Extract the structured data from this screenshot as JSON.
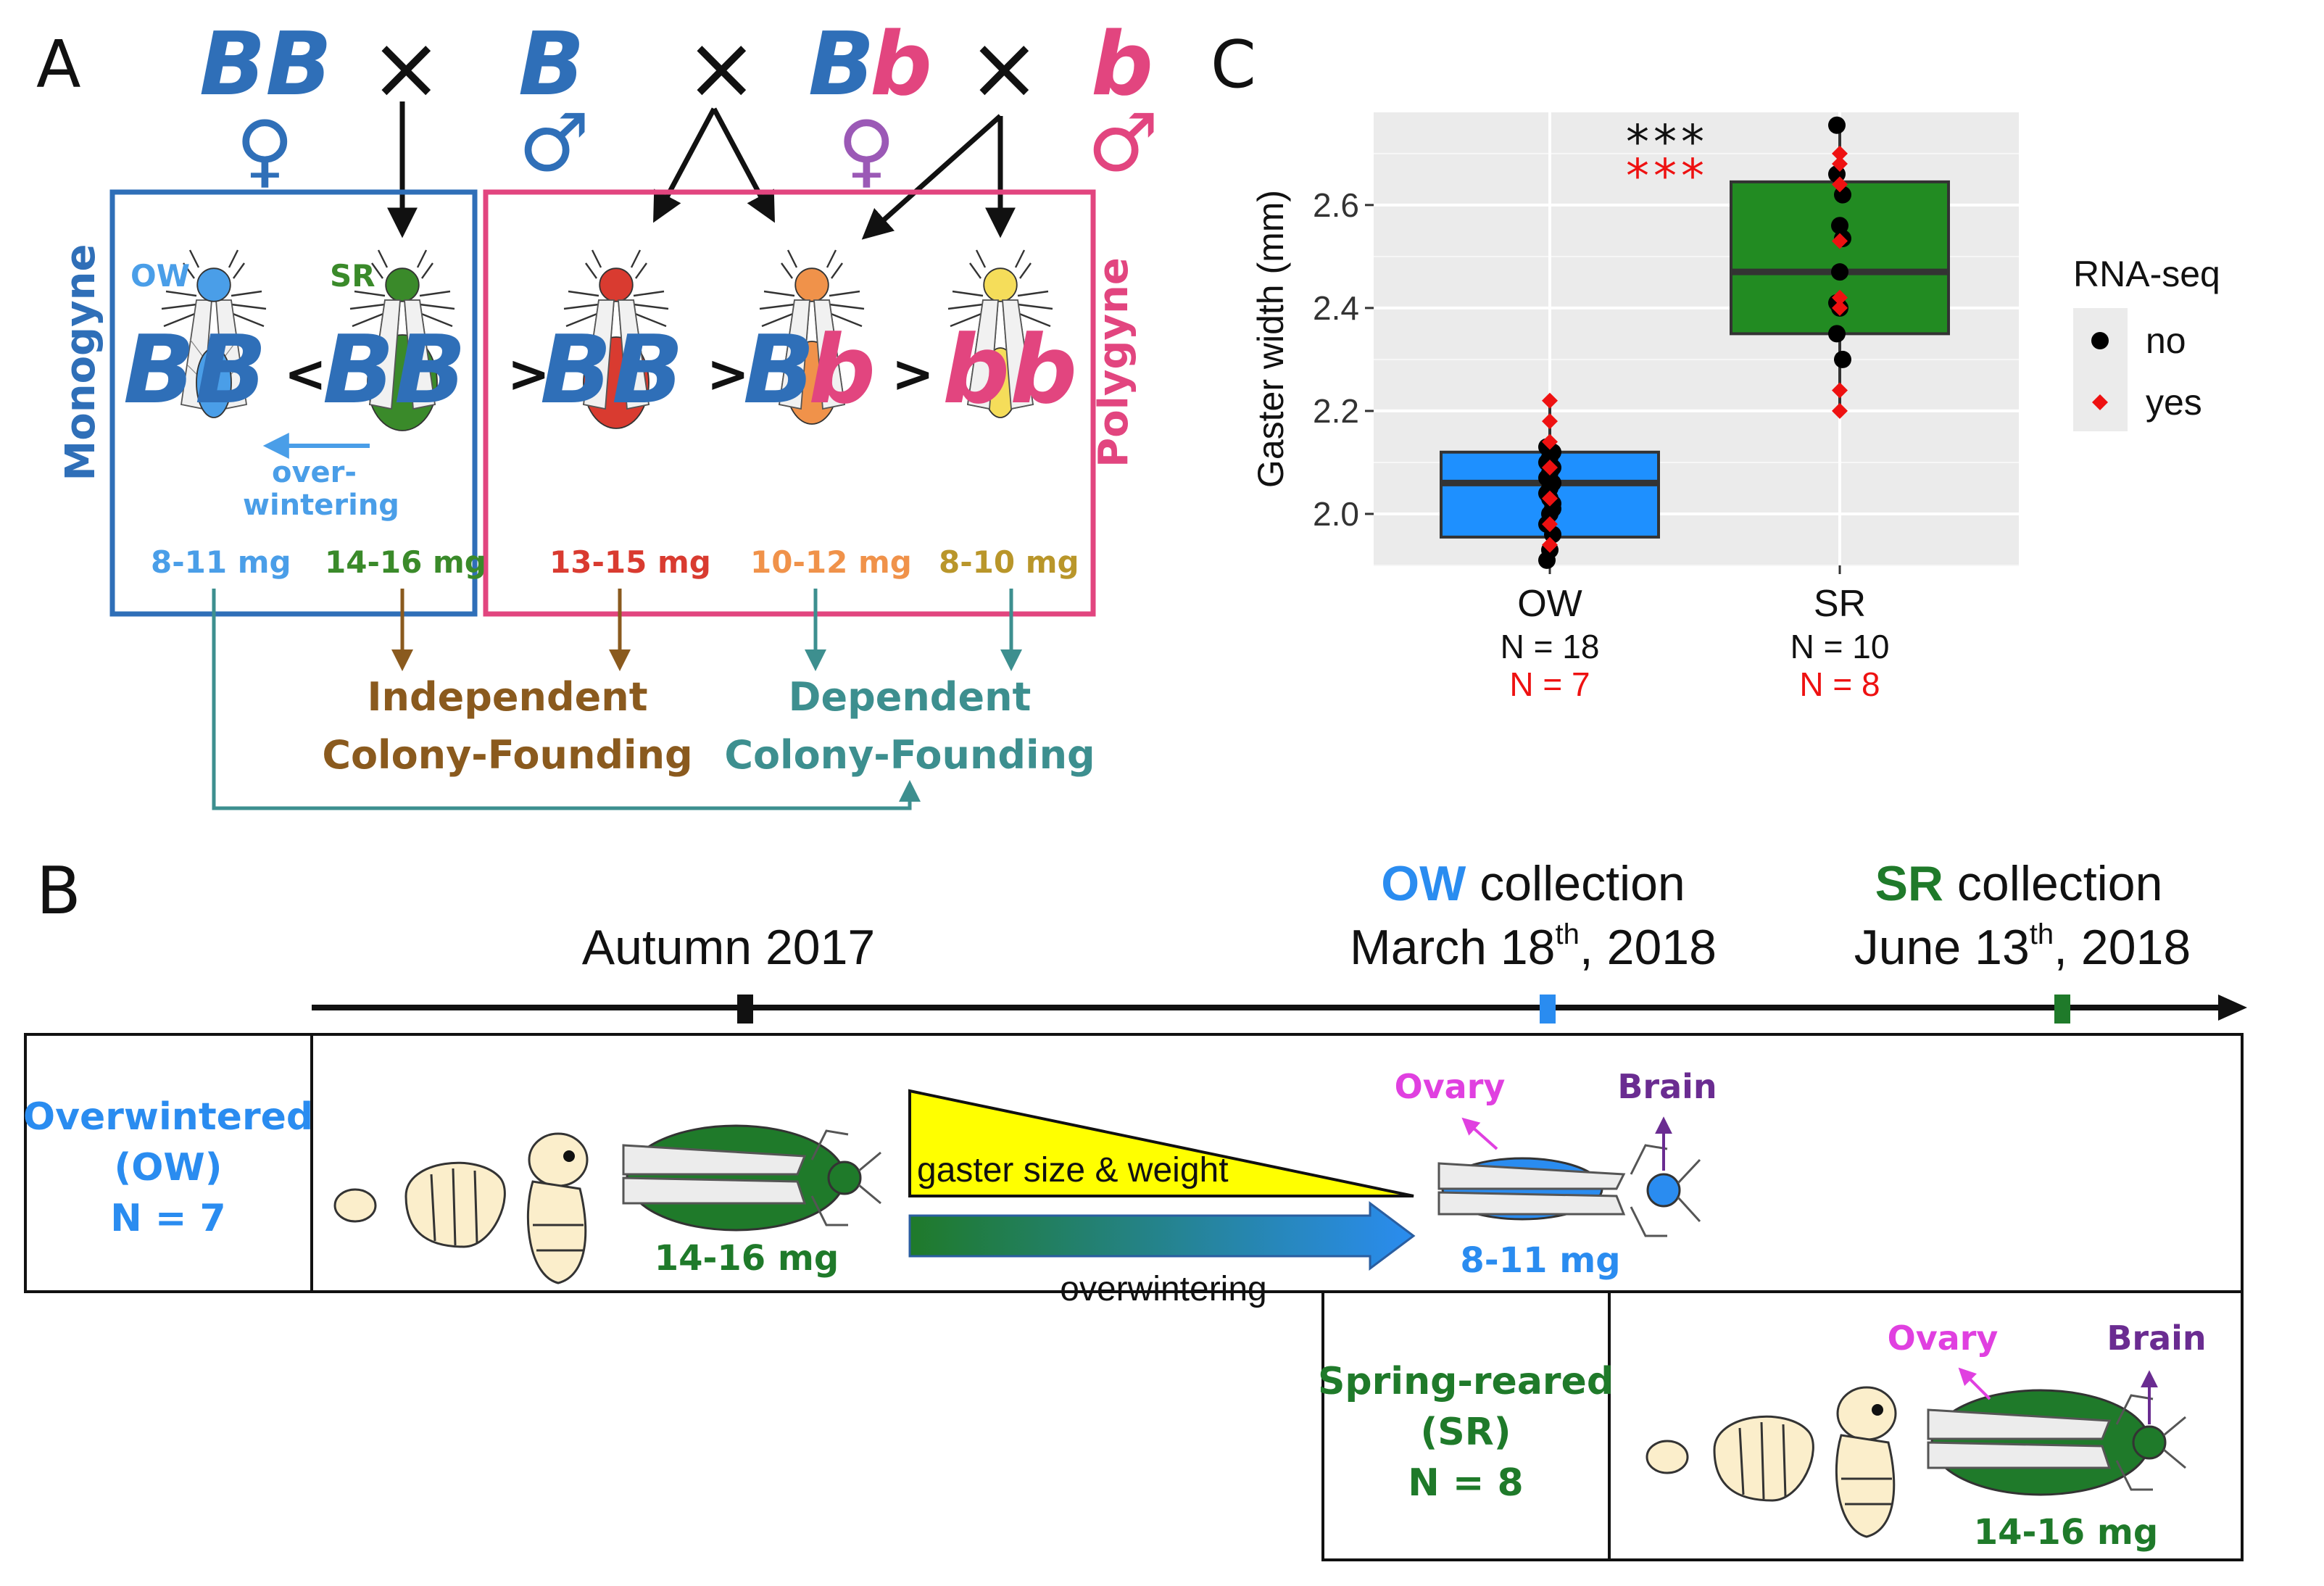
{
  "panel_a": {
    "label": "A",
    "cross": {
      "genotype_bb_female": "BB",
      "female_symbol": "♀",
      "cross_symbol": "×",
      "genotype_b_male": "B",
      "male_symbol": "♂",
      "genotype_bb_het_B": "B",
      "genotype_bb_het_b": "b",
      "hetero_female_symbol": "♀",
      "genotype_little_b_male": "b",
      "little_b_male_symbol": "♂"
    },
    "monogyne": {
      "label": "Monogyne",
      "ow_label": "OW",
      "sr_label": "SR",
      "ow_genotype": "BB",
      "sr_genotype": "BB",
      "less_than": "<",
      "overwintering_line1": "over-",
      "overwintering_line2": "wintering",
      "ow_weight": "8-11 mg",
      "sr_weight": "14-16 mg",
      "color": "#2f6fb8"
    },
    "polygyne": {
      "label": "Polygyne",
      "gt1": ">",
      "gt2": ">",
      "gt3": ">",
      "bb_genotype": "BB",
      "het_B": "B",
      "het_b": "b",
      "homo_b": "bb",
      "bb_weight": "13-15 mg",
      "het_weight": "10-12 mg",
      "homo_weight": "8-10 mg",
      "color": "#e2457f"
    },
    "founding": {
      "independent_line1": "Independent",
      "independent_line2": "Colony-Founding",
      "dependent_line1": "Dependent",
      "dependent_line2": "Colony-Founding",
      "independent_color": "#8a5a1e",
      "dependent_color": "#3d8f8f"
    }
  },
  "panel_b": {
    "label": "B",
    "timeline": {
      "autumn": "Autumn 2017",
      "ow_collection_prefix": "OW",
      "ow_collection_suffix": " collection",
      "ow_date_month": "March 18",
      "ow_date_sup": "th",
      "ow_date_year": ",  2018",
      "sr_collection_prefix": "SR",
      "sr_collection_suffix": " collection",
      "sr_date_month": "June 13",
      "sr_date_sup": "th",
      "sr_date_year": ",  2018"
    },
    "overwintered": {
      "line1": "Overwintered",
      "line2": "(OW)",
      "line3": "N = 7",
      "start_weight": "14-16 mg",
      "end_weight": "8-11 mg",
      "triangle_label": "gaster size & weight",
      "arrow_label": "overwintering",
      "ovary": "Ovary",
      "brain": "Brain"
    },
    "spring_reared": {
      "line1": "Spring-reared",
      "line2": "(SR)",
      "line3": "N = 8",
      "weight": "14-16 mg",
      "ovary": "Ovary",
      "brain": "Brain"
    }
  },
  "panel_c": {
    "label": "C",
    "chart_data": {
      "type": "box",
      "ylabel": "Gaster width (mm)",
      "ylim": [
        1.9,
        2.78
      ],
      "yticks": [
        2.0,
        2.2,
        2.4,
        2.6
      ],
      "grid": true,
      "categories": [
        "OW",
        "SR"
      ],
      "counts_no": [
        "N = 18",
        "N = 10"
      ],
      "counts_yes": [
        "N = 7",
        "N = 8"
      ],
      "significance": [
        "***",
        "***"
      ],
      "boxes": [
        {
          "name": "OW",
          "q1": 1.955,
          "median": 2.06,
          "q3": 2.12,
          "whisker_low": 1.91,
          "whisker_high": 2.22,
          "fill": "#1e90ff"
        },
        {
          "name": "SR",
          "q1": 2.35,
          "median": 2.47,
          "q3": 2.645,
          "whisker_low": 2.2,
          "whisker_high": 2.755,
          "fill": "#228b22"
        }
      ],
      "points": {
        "OW": {
          "no": [
            1.91,
            1.93,
            1.96,
            1.98,
            2.0,
            2.02,
            2.04,
            2.05,
            2.06,
            2.07,
            2.08,
            2.09,
            2.1,
            2.11,
            2.12,
            2.13,
            2.03,
            2.01
          ],
          "yes": [
            1.94,
            1.98,
            2.03,
            2.09,
            2.14,
            2.18,
            2.22
          ]
        },
        "SR": {
          "no": [
            2.755,
            2.56,
            2.535,
            2.41,
            2.4,
            2.3,
            2.35,
            2.47,
            2.62,
            2.66
          ],
          "yes": [
            2.2,
            2.24,
            2.4,
            2.42,
            2.53,
            2.64,
            2.68,
            2.7
          ]
        }
      },
      "legend": {
        "title": "RNA-seq",
        "entries": [
          "no",
          "yes"
        ],
        "colors": [
          "#000000",
          "#ee1111"
        ],
        "placement": "right"
      }
    }
  }
}
